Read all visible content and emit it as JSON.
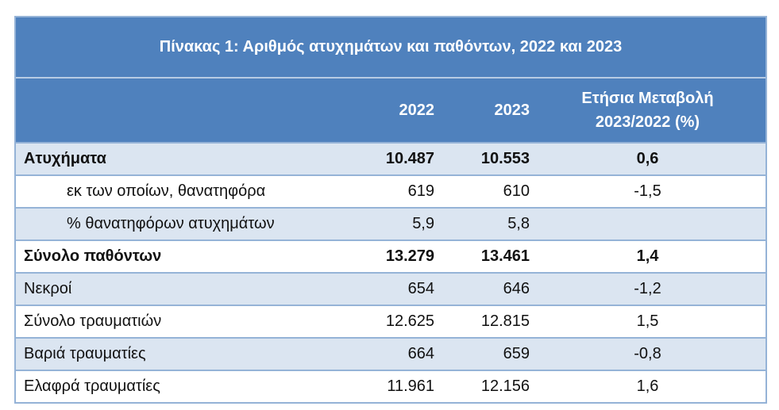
{
  "table": {
    "title": "Πίνακας 1: Αριθμός ατυχημάτων και παθόντων, 2022 και 2023",
    "headers": [
      "2022",
      "2023",
      [
        "Ετήσια Μεταβολή",
        "2023/2022 (%)"
      ]
    ],
    "rows": [
      {
        "label": "Ατυχήματα",
        "cells": [
          "10.487",
          "10.553",
          "0,6"
        ],
        "bold": true
      },
      {
        "label": "εκ των οποίων, θανατηφόρα",
        "cells": [
          "619",
          "610",
          "-1,5"
        ],
        "indent": true
      },
      {
        "label": "% θανατηφόρων ατυχημάτων",
        "cells": [
          "5,9",
          "5,8",
          null
        ],
        "indent": true
      },
      {
        "label": "Σύνολο παθόντων",
        "cells": [
          "13.279",
          "13.461",
          "1,4"
        ],
        "bold": true
      },
      {
        "label": "Νεκροί",
        "cells": [
          "654",
          "646",
          "-1,2"
        ]
      },
      {
        "label": "Σύνολο τραυματιών",
        "cells": [
          "12.625",
          "12.815",
          "1,5"
        ]
      },
      {
        "label": "Βαριά τραυματίες",
        "cells": [
          "664",
          "659",
          "-0,8"
        ]
      },
      {
        "label": "Ελαφρά τραυματίες",
        "cells": [
          "11.961",
          "12.156",
          "1,6"
        ]
      }
    ]
  }
}
